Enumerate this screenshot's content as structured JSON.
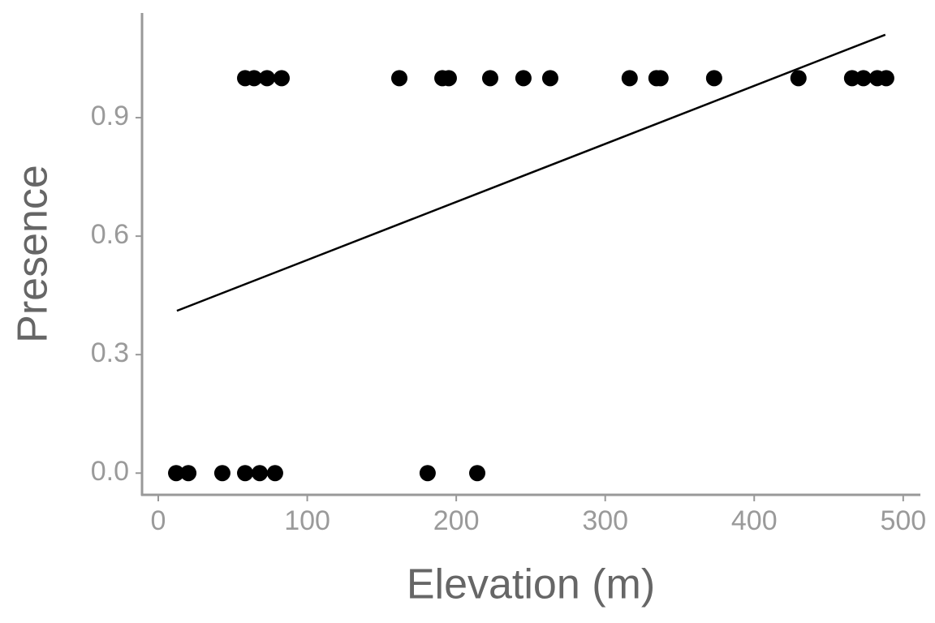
{
  "chart_data": {
    "type": "scatter",
    "x_label": "Elevation (m)",
    "y_label": "Presence",
    "points": {
      "color": "#000000",
      "x": [
        58.3,
        64.3,
        73.0,
        82.8,
        161.8,
        190.7,
        195.0,
        222.8,
        245.1,
        263.1,
        316.4,
        334.4,
        337.1,
        373.1,
        429.7,
        465.7,
        473.3,
        482.6,
        488.6,
        12,
        20.2,
        43.0,
        58.3,
        68.1,
        78.4,
        180.8,
        214.1
      ],
      "y": [
        1,
        1,
        1,
        1,
        1,
        1,
        1,
        1,
        1,
        1,
        1,
        1,
        1,
        1,
        1,
        1,
        1,
        1,
        1,
        0,
        0,
        0,
        0,
        0,
        0,
        0,
        0
      ]
    },
    "fit": {
      "color": "#000000",
      "x": [
        12.5,
        488
      ],
      "y": [
        0.411,
        1.11
      ]
    },
    "xlim": [
      -10.9,
      511
    ],
    "ylim": [
      -0.055,
      1.163
    ],
    "xticks": [
      0,
      100,
      200,
      300,
      400,
      500
    ],
    "yticks": [
      {
        "value": 0,
        "label": "0.0"
      },
      0.3,
      0.6,
      0.9
    ]
  }
}
